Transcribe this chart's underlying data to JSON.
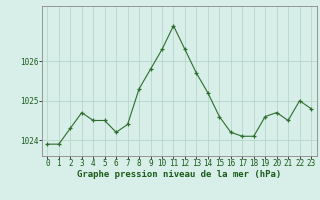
{
  "x": [
    0,
    1,
    2,
    3,
    4,
    5,
    6,
    7,
    8,
    9,
    10,
    11,
    12,
    13,
    14,
    15,
    16,
    17,
    18,
    19,
    20,
    21,
    22,
    23
  ],
  "y": [
    1023.9,
    1023.9,
    1024.3,
    1024.7,
    1024.5,
    1024.5,
    1024.2,
    1024.4,
    1025.3,
    1025.8,
    1026.3,
    1026.9,
    1026.3,
    1025.7,
    1025.2,
    1024.6,
    1024.2,
    1024.1,
    1024.1,
    1024.6,
    1024.7,
    1024.5,
    1025.0,
    1024.8
  ],
  "xlabel": "Graphe pression niveau de la mer (hPa)",
  "ylim": [
    1023.6,
    1027.4
  ],
  "yticks": [
    1024,
    1025,
    1026
  ],
  "xticks": [
    0,
    1,
    2,
    3,
    4,
    5,
    6,
    7,
    8,
    9,
    10,
    11,
    12,
    13,
    14,
    15,
    16,
    17,
    18,
    19,
    20,
    21,
    22,
    23
  ],
  "line_color": "#2d6e2d",
  "marker_color": "#2d6e2d",
  "bg_color": "#d8eee8",
  "plot_bg_color": "#d8eee8",
  "grid_color": "#b0d4c4",
  "border_color": "#888888",
  "xlabel_color": "#1a5c1a",
  "xlabel_fontsize": 6.5,
  "tick_fontsize": 5.5,
  "ytick_color": "#1a5c1a",
  "xtick_color": "#1a5c1a"
}
